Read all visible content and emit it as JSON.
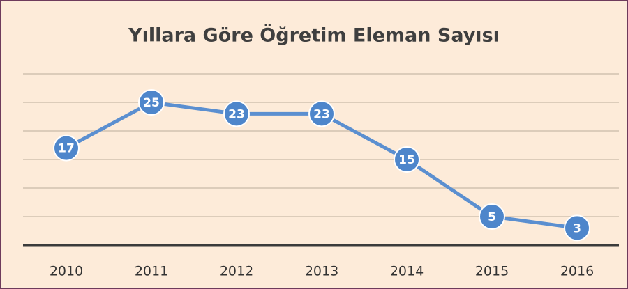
{
  "chart_data": {
    "type": "line",
    "title": "Yıllara Göre Öğretim Eleman Sayısı",
    "categories": [
      "2010",
      "2011",
      "2012",
      "2013",
      "2014",
      "2015",
      "2016"
    ],
    "values": [
      17,
      25,
      23,
      23,
      15,
      5,
      3
    ],
    "color": "#5b8fd0",
    "marker_color": "#4e86cb",
    "ylim": [
      0,
      30
    ],
    "yticks": [
      0,
      5,
      10,
      15,
      20,
      25,
      30
    ],
    "grid": true
  }
}
